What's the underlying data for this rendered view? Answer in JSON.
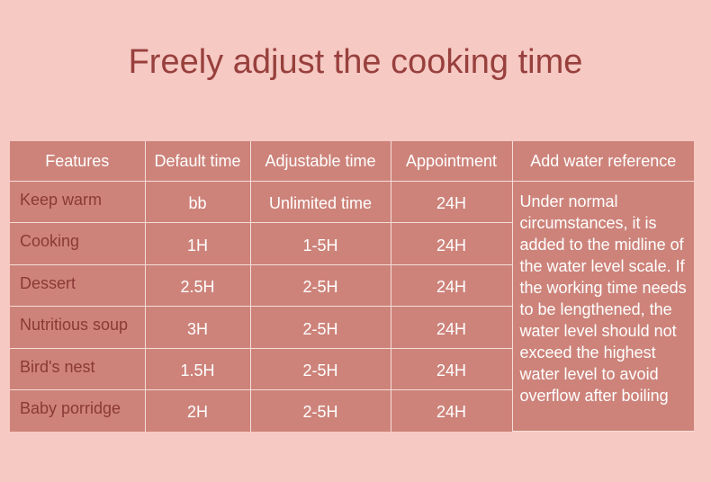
{
  "title": "Freely adjust the cooking time",
  "table": {
    "headers": [
      "Features",
      "Default time",
      "Adjustable time",
      "Appointment",
      "Add water reference"
    ],
    "rows": [
      {
        "feature": "Keep warm",
        "default": "bb",
        "adjustable": "Unlimited time",
        "appointment": "24H"
      },
      {
        "feature": "Cooking",
        "default": "1H",
        "adjustable": "1-5H",
        "appointment": "24H"
      },
      {
        "feature": "Dessert",
        "default": "2.5H",
        "adjustable": "2-5H",
        "appointment": "24H"
      },
      {
        "feature": "Nutritious soup",
        "default": "3H",
        "adjustable": "2-5H",
        "appointment": "24H"
      },
      {
        "feature": "Bird's nest",
        "default": "1.5H",
        "adjustable": "2-5H",
        "appointment": "24H"
      },
      {
        "feature": "Baby porridge",
        "default": "2H",
        "adjustable": "2-5H",
        "appointment": "24H"
      }
    ],
    "water_reference": "Under normal circumstances, it is added to the midline of the water level scale. If the working time needs to be lengthened, the water level should not exceed the highest water level to avoid overflow after boiling"
  }
}
